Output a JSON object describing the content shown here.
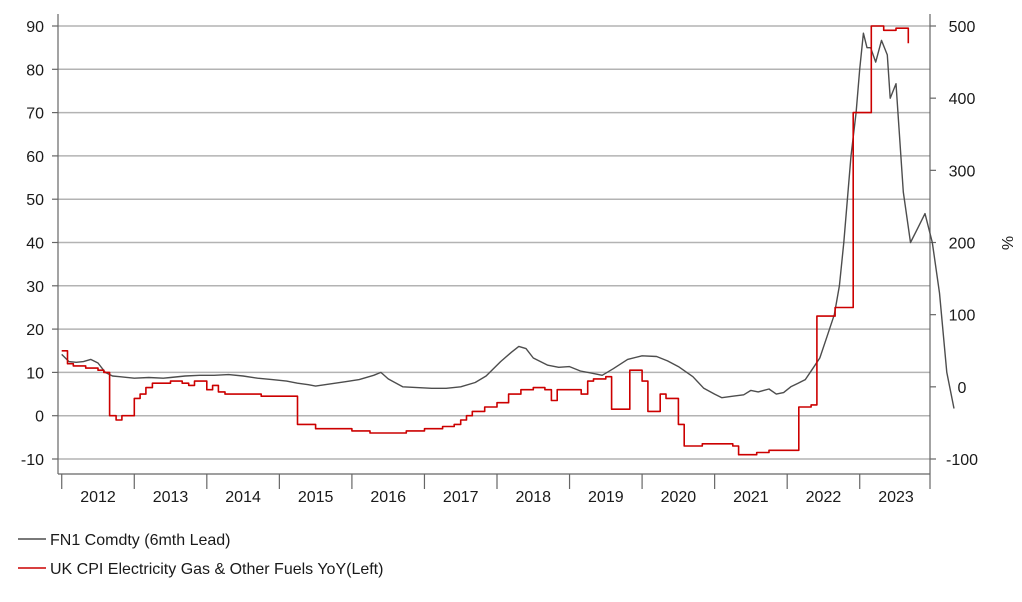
{
  "chart_data": {
    "type": "line",
    "title": "",
    "x_axis": {
      "ticks": [
        "2012",
        "2013",
        "2014",
        "2015",
        "2016",
        "2017",
        "2018",
        "2019",
        "2020",
        "2021",
        "2022",
        "2023"
      ],
      "range": [
        2011.5,
        2023.83
      ]
    },
    "y_left": {
      "ylim": [
        -10,
        90
      ],
      "ticks": [
        -10,
        0,
        10,
        20,
        30,
        40,
        50,
        60,
        70,
        80,
        90
      ],
      "label": ""
    },
    "y_right": {
      "ylim": [
        -100,
        500
      ],
      "ticks": [
        -100,
        0,
        100,
        200,
        300,
        400,
        500
      ],
      "label": "%"
    },
    "grid": true,
    "legend_position": "bottom-left",
    "series": [
      {
        "name": "FN1 Comdty (6mth Lead)",
        "axis": "right",
        "color": "#4d4d4d",
        "style": "line",
        "x": [
          2011.5,
          2011.6,
          2011.7,
          2011.8,
          2011.9,
          2012.0,
          2012.1,
          2012.2,
          2012.3,
          2012.5,
          2012.7,
          2012.9,
          2013.0,
          2013.2,
          2013.4,
          2013.6,
          2013.8,
          2014.0,
          2014.2,
          2014.4,
          2014.6,
          2014.75,
          2014.9,
          2015.0,
          2015.2,
          2015.4,
          2015.6,
          2015.8,
          2015.9,
          2016.0,
          2016.2,
          2016.4,
          2016.6,
          2016.8,
          2016.9,
          2017.0,
          2017.2,
          2017.35,
          2017.45,
          2017.55,
          2017.7,
          2017.8,
          2017.9,
          2018.0,
          2018.2,
          2018.35,
          2018.5,
          2018.65,
          2018.8,
          2018.95,
          2019.1,
          2019.3,
          2019.5,
          2019.7,
          2019.85,
          2020.0,
          2020.2,
          2020.35,
          2020.5,
          2020.6,
          2020.75,
          2020.9,
          2021.0,
          2021.1,
          2021.25,
          2021.35,
          2021.45,
          2021.55,
          2021.65,
          2021.75,
          2021.85,
          2021.95,
          2022.05,
          2022.15,
          2022.22,
          2022.28,
          2022.33,
          2022.38,
          2022.45,
          2022.5,
          2022.55,
          2022.6,
          2022.65,
          2022.72,
          2022.8,
          2022.88,
          2022.92,
          2023.0,
          2023.1,
          2023.2,
          2023.3,
          2023.4,
          2023.5,
          2023.6,
          2023.7,
          2023.8
        ],
        "values": [
          45,
          35,
          34,
          35,
          38,
          33,
          20,
          15,
          14,
          12,
          13,
          12,
          13,
          15,
          16,
          16,
          17,
          15,
          12,
          10,
          8,
          5,
          3,
          1,
          4,
          7,
          10,
          16,
          20,
          11,
          0,
          -1,
          -2,
          -2,
          -1,
          0,
          6,
          15,
          25,
          35,
          48,
          56,
          53,
          40,
          30,
          27,
          28,
          22,
          19,
          16,
          25,
          38,
          43,
          42,
          36,
          28,
          14,
          -2,
          -10,
          -15,
          -13,
          -11,
          -5,
          -7,
          -3,
          -10,
          -8,
          0,
          5,
          10,
          25,
          40,
          70,
          100,
          140,
          200,
          260,
          320,
          380,
          440,
          490,
          470,
          470,
          450,
          480,
          460,
          400,
          420,
          270,
          200,
          220,
          240,
          200,
          130,
          20,
          -30
        ]
      },
      {
        "name": "UK CPI Electricity Gas & Other Fuels YoY(Left)",
        "axis": "left",
        "color": "#cc0000",
        "style": "step",
        "x": [
          2011.5,
          2011.58,
          2011.66,
          2011.75,
          2011.83,
          2011.91,
          2012.0,
          2012.08,
          2012.16,
          2012.25,
          2012.33,
          2012.5,
          2012.58,
          2012.66,
          2012.75,
          2013.0,
          2013.08,
          2013.16,
          2013.25,
          2013.33,
          2013.5,
          2013.58,
          2013.66,
          2013.75,
          2014.0,
          2014.25,
          2014.5,
          2014.75,
          2014.83,
          2015.0,
          2015.25,
          2015.5,
          2015.75,
          2016.0,
          2016.25,
          2016.5,
          2016.75,
          2016.91,
          2017.0,
          2017.08,
          2017.16,
          2017.33,
          2017.5,
          2017.66,
          2017.83,
          2018.0,
          2018.16,
          2018.25,
          2018.33,
          2018.5,
          2018.58,
          2018.66,
          2018.75,
          2018.83,
          2019.0,
          2019.08,
          2019.25,
          2019.33,
          2019.5,
          2019.58,
          2019.75,
          2019.83,
          2020.0,
          2020.08,
          2020.25,
          2020.33,
          2020.5,
          2020.75,
          2020.83,
          2021.0,
          2021.08,
          2021.25,
          2021.5,
          2021.66,
          2021.75,
          2021.83,
          2021.91,
          2022.0,
          2022.08,
          2022.16,
          2022.25,
          2022.33,
          2022.41,
          2022.5,
          2022.58,
          2022.66,
          2022.75,
          2022.83,
          2022.91,
          2023.0,
          2023.08,
          2023.17
        ],
        "values": [
          15,
          12,
          11.5,
          11.5,
          11,
          11,
          10.5,
          10,
          0,
          -1,
          0,
          4,
          5,
          6.5,
          7.5,
          8,
          8,
          7.5,
          7,
          8,
          6,
          7,
          5.5,
          5,
          5,
          4.5,
          4.5,
          -2,
          -2,
          -3,
          -3,
          -3.5,
          -4,
          -4,
          -3.5,
          -3,
          -2.5,
          -2,
          -1,
          0,
          1,
          2,
          3,
          5,
          6,
          6.5,
          6,
          3.5,
          6,
          6,
          6,
          5,
          8,
          8.5,
          9,
          1.5,
          1.5,
          10.5,
          8,
          1,
          5,
          4,
          -2,
          -7,
          -7,
          -6.5,
          -6.5,
          -7,
          -9,
          -9,
          -8.5,
          -8,
          -8,
          2,
          2,
          2.5,
          23,
          23,
          23,
          25,
          25,
          25,
          70,
          70,
          70,
          90,
          90,
          89,
          89,
          89.5,
          89.5,
          86
        ]
      }
    ]
  }
}
